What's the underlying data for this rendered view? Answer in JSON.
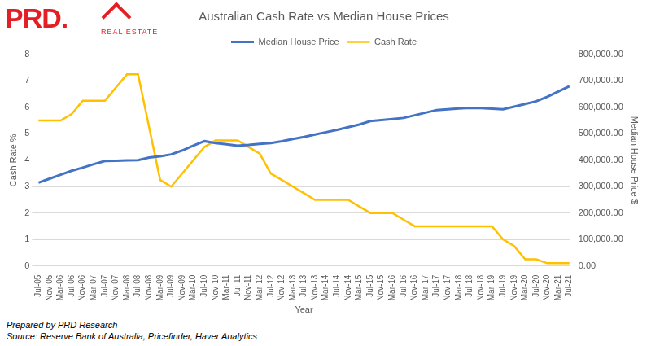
{
  "logo": {
    "text": "PRD.",
    "subtext": "REAL ESTATE"
  },
  "chart_data": {
    "type": "line",
    "title": "Australian Cash Rate vs Median House Prices",
    "x_label": "Year",
    "y_label": "Cash Rate %",
    "y2_label": "Median House Price $",
    "annotations": [
      "Prepared by PRD Research",
      "Source: Reserve Bank of Australia, Pricefinder, Haver Analytics"
    ],
    "legend": "top",
    "grid": true,
    "categories": [
      "Jul-05",
      "Nov-05",
      "Mar-06",
      "Jul-06",
      "Nov-06",
      "Mar-07",
      "Jul-07",
      "Nov-07",
      "Mar-08",
      "Jul-08",
      "Nov-08",
      "Mar-09",
      "Jul-09",
      "Nov-09",
      "Mar-10",
      "Jul-10",
      "Nov-10",
      "Mar-11",
      "Jul-11",
      "Nov-11",
      "Mar-12",
      "Jul-12",
      "Nov-12",
      "Mar-13",
      "Jul-13",
      "Nov-13",
      "Mar-14",
      "Jul-14",
      "Nov-14",
      "Mar-15",
      "Jul-15",
      "Nov-15",
      "Mar-16",
      "Jul-16",
      "Nov-16",
      "Mar-17",
      "Jul-17",
      "Nov-17",
      "Mar-18",
      "Jul-18",
      "Nov-18",
      "Mar-19",
      "Jul-19",
      "Nov-19",
      "Mar-20",
      "Jul-20",
      "Nov-20",
      "Mar-21",
      "Jul-21"
    ],
    "series": [
      {
        "name": "Median House Price",
        "color": "#4472c4",
        "axis": "y2",
        "values": [
          315000,
          330000,
          345000,
          360000,
          372000,
          385000,
          397000,
          398000,
          399000,
          400000,
          410000,
          415000,
          422000,
          437000,
          455000,
          472000,
          465000,
          460000,
          455000,
          458000,
          462000,
          465000,
          472000,
          480000,
          488000,
          497000,
          506000,
          515000,
          525000,
          535000,
          548000,
          552000,
          556000,
          560000,
          570000,
          580000,
          590000,
          593000,
          596000,
          598000,
          597000,
          595000,
          593000,
          603000,
          613000,
          623000,
          640000,
          660000,
          680000
        ]
      },
      {
        "name": "Cash Rate",
        "color": "#ffc000",
        "values": [
          5.5,
          5.5,
          5.5,
          5.75,
          6.25,
          6.25,
          6.25,
          6.75,
          7.25,
          7.25,
          5.25,
          3.25,
          3.0,
          3.5,
          4.0,
          4.5,
          4.75,
          4.75,
          4.75,
          4.5,
          4.25,
          3.5,
          3.25,
          3.0,
          2.75,
          2.5,
          2.5,
          2.5,
          2.5,
          2.25,
          2.0,
          2.0,
          2.0,
          1.75,
          1.5,
          1.5,
          1.5,
          1.5,
          1.5,
          1.5,
          1.5,
          1.5,
          1.0,
          0.75,
          0.25,
          0.25,
          0.1,
          0.1,
          0.1
        ]
      }
    ],
    "ylim": [
      0,
      8
    ],
    "yticks": [
      0,
      1,
      2,
      3,
      4,
      5,
      6,
      7,
      8
    ],
    "y2lim": [
      0,
      800000
    ],
    "y2ticks": [
      {
        "value": 0,
        "label": "0.00"
      },
      {
        "value": 100000,
        "label": "100,000.00"
      },
      {
        "value": 200000,
        "label": "200,000.00"
      },
      {
        "value": 300000,
        "label": "300,000.00"
      },
      {
        "value": 400000,
        "label": "400,000.00"
      },
      {
        "value": 500000,
        "label": "500,000.00"
      },
      {
        "value": 600000,
        "label": "600,000.00"
      },
      {
        "value": 700000,
        "label": "700,000.00"
      },
      {
        "value": 800000,
        "label": "800,000.00"
      }
    ]
  }
}
